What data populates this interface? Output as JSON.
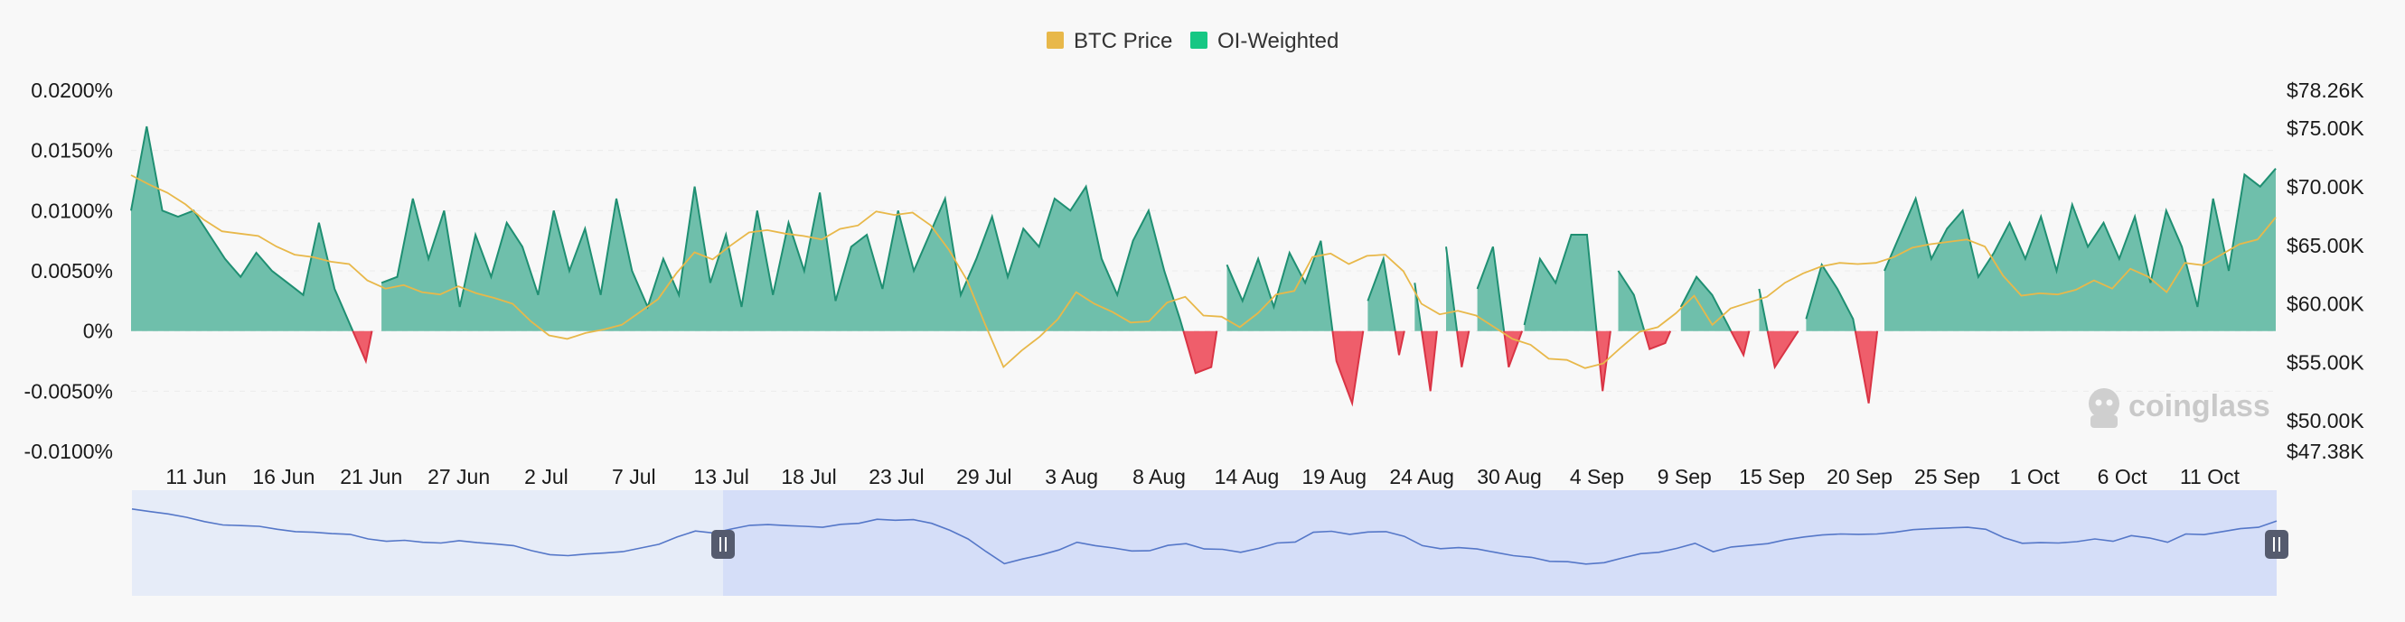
{
  "legend": [
    {
      "name": "BTC Price",
      "color": "#e8b84a"
    },
    {
      "name": "OI-Weighted",
      "color": "#16c784"
    }
  ],
  "watermark": {
    "text": "coinglass",
    "icon": "coinglass-logo-icon"
  },
  "colors": {
    "positive_fill": "#6fbfab",
    "positive_line": "#1f8f72",
    "negative_fill": "#ef5e6b",
    "negative_line": "#d93445",
    "price_line": "#e8b84a",
    "grid": "#ebebeb",
    "navigator_bg": "#e6ecf8",
    "navigator_selected": "#d5def8",
    "navigator_line": "#5577c8",
    "handle": "#555b6e"
  },
  "chart_data": {
    "type": "area",
    "title": "",
    "left_axis": {
      "ticks": [
        "0.0200%",
        "0.0150%",
        "0.0100%",
        "0.0050%",
        "0%",
        "-0.0050%",
        "-0.0100%"
      ],
      "range": [
        -0.01,
        0.02
      ]
    },
    "right_axis": {
      "ticks": [
        "$78.26K",
        "$75.00K",
        "$70.00K",
        "$65.00K",
        "$60.00K",
        "$55.00K",
        "$50.00K",
        "$47.38K"
      ],
      "range": [
        47.38,
        78.26
      ]
    },
    "x_ticks": [
      "11 Jun",
      "16 Jun",
      "21 Jun",
      "27 Jun",
      "2 Jul",
      "7 Jul",
      "13 Jul",
      "18 Jul",
      "23 Jul",
      "29 Jul",
      "3 Aug",
      "8 Aug",
      "14 Aug",
      "19 Aug",
      "24 Aug",
      "30 Aug",
      "4 Sep",
      "9 Sep",
      "15 Sep",
      "20 Sep",
      "25 Sep",
      "1 Oct",
      "6 Oct",
      "11 Oct"
    ],
    "x_range": [
      "7 Jun",
      "16 Oct"
    ],
    "series": [
      {
        "name": "OI-Weighted",
        "unit": "%",
        "values": [
          0.01,
          0.017,
          0.01,
          0.0095,
          0.01,
          0.008,
          0.006,
          0.0045,
          0.0065,
          0.005,
          0.004,
          0.003,
          0.009,
          0.0035,
          0.0005,
          -0.0025,
          0.004,
          0.0045,
          0.011,
          0.006,
          0.01,
          0.002,
          0.008,
          0.0045,
          0.009,
          0.007,
          0.003,
          0.01,
          0.005,
          0.0085,
          0.003,
          0.011,
          0.005,
          0.002,
          0.006,
          0.003,
          0.012,
          0.004,
          0.008,
          0.002,
          0.01,
          0.003,
          0.009,
          0.005,
          0.0115,
          0.0025,
          0.007,
          0.008,
          0.0035,
          0.01,
          0.005,
          0.008,
          0.011,
          0.003,
          0.006,
          0.0095,
          0.0045,
          0.0085,
          0.007,
          0.011,
          0.01,
          0.012,
          0.006,
          0.003,
          0.0075,
          0.01,
          0.005,
          0.001,
          -0.0035,
          -0.003,
          0.0055,
          0.0025,
          0.006,
          0.002,
          0.0065,
          0.004,
          0.0075,
          -0.0025,
          -0.006,
          0.0025,
          0.006,
          -0.002,
          0.004,
          -0.005,
          0.007,
          -0.003,
          0.0035,
          0.007,
          -0.003,
          0.0005,
          0.006,
          0.004,
          0.008,
          0.008,
          -0.005,
          0.005,
          0.003,
          -0.0015,
          -0.001,
          0.002,
          0.0045,
          0.003,
          0.0005,
          -0.002,
          0.0035,
          -0.003,
          -0.001,
          0.001,
          0.0055,
          0.0035,
          0.001,
          -0.006,
          0.005,
          0.008,
          0.011,
          0.006,
          0.0085,
          0.01,
          0.0045,
          0.0065,
          0.009,
          0.006,
          0.0095,
          0.005,
          0.0105,
          0.007,
          0.009,
          0.006,
          0.0095,
          0.004,
          0.01,
          0.007,
          0.002,
          0.011,
          0.005,
          0.013,
          0.012,
          0.0135
        ]
      },
      {
        "name": "BTC Price",
        "unit": "$K",
        "values": [
          71.0,
          70.2,
          69.5,
          68.5,
          67.2,
          66.2,
          66.0,
          65.8,
          64.9,
          64.2,
          64.0,
          63.6,
          63.4,
          62.0,
          61.3,
          61.6,
          61.0,
          60.8,
          61.5,
          60.9,
          60.5,
          60.0,
          58.5,
          57.3,
          57.0,
          57.5,
          57.8,
          58.2,
          59.3,
          60.4,
          62.6,
          64.4,
          63.8,
          65.0,
          66.1,
          66.3,
          66.0,
          65.8,
          65.5,
          66.4,
          66.7,
          67.9,
          67.6,
          67.8,
          66.7,
          64.6,
          62.0,
          58.2,
          54.6,
          56.0,
          57.2,
          58.7,
          61.0,
          60.0,
          59.3,
          58.4,
          58.5,
          60.1,
          60.6,
          59.0,
          58.9,
          58.0,
          59.2,
          60.8,
          61.1,
          64.0,
          64.3,
          63.4,
          64.1,
          64.2,
          62.8,
          60.0,
          59.1,
          59.4,
          59.0,
          58.0,
          57.0,
          56.5,
          55.3,
          55.2,
          54.5,
          54.9,
          56.3,
          57.6,
          58.0,
          59.2,
          60.7,
          58.2,
          59.6,
          60.1,
          60.6,
          61.8,
          62.6,
          63.2,
          63.5,
          63.4,
          63.5,
          64.0,
          64.8,
          65.1,
          65.3,
          65.5,
          64.9,
          62.4,
          60.7,
          60.9,
          60.8,
          61.2,
          62.0,
          61.3,
          63.0,
          62.3,
          61.0,
          63.5,
          63.3,
          64.2,
          65.1,
          65.5,
          67.4
        ]
      }
    ],
    "navigator": {
      "selected_range": [
        "13 Jul",
        "16 Oct"
      ]
    }
  }
}
